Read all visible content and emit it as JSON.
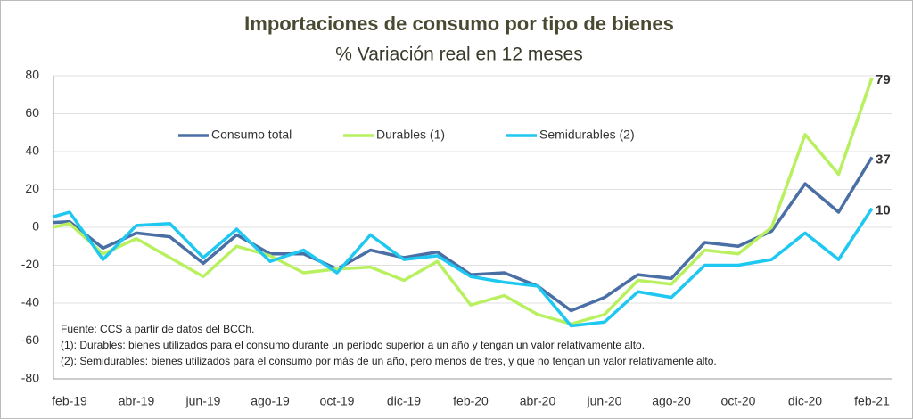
{
  "chart_data": {
    "type": "line",
    "title": "Importaciones de consumo por tipo de bienes",
    "subtitle": "% Variación real en 12 meses",
    "categories": [
      null,
      "feb-19",
      null,
      "abr-19",
      null,
      "jun-19",
      null,
      "ago-19",
      null,
      "oct-19",
      null,
      "dic-19",
      null,
      "feb-20",
      null,
      "abr-20",
      null,
      "jun-20",
      null,
      "ago-20",
      null,
      "oct-20",
      null,
      "dic-20",
      null,
      "feb-21"
    ],
    "series": [
      {
        "name": "Consumo total",
        "color": "#4a6fa5",
        "values": [
          2,
          3,
          -11,
          -3,
          -5,
          -19,
          -4,
          -14,
          -14,
          -22,
          -12,
          -16,
          -13,
          -25,
          -24,
          -31,
          -44,
          -37,
          -25,
          -27,
          -8,
          -10,
          -2,
          23,
          8,
          37
        ]
      },
      {
        "name": "Durables (1)",
        "color": "#b8f060",
        "values": [
          -2,
          2,
          -14,
          -6,
          -16,
          -26,
          -10,
          -15,
          -24,
          -22,
          -21,
          -28,
          -18,
          -41,
          -36,
          -46,
          -51,
          -46,
          -28,
          -30,
          -12,
          -14,
          0,
          49,
          28,
          79
        ]
      },
      {
        "name": "Semidurables (2)",
        "color": "#1ec8f0",
        "values": [
          3,
          8,
          -17,
          1,
          2,
          -16,
          -1,
          -18,
          -12,
          -24,
          -4,
          -17,
          -15,
          -26,
          -29,
          -31,
          -52,
          -50,
          -34,
          -37,
          -20,
          -20,
          -17,
          -3,
          -17,
          10
        ]
      }
    ],
    "ylim": [
      -80,
      80
    ],
    "yticks": [
      -80,
      -60,
      -40,
      -20,
      0,
      20,
      40,
      60,
      80
    ],
    "grid": true,
    "legend": "top",
    "annotations": [
      "Fuente: CCS a partir de datos del BCCh.",
      "(1): Durables: bienes utilizados para el consumo durante un período superior a un año y tengan un valor relativamente alto.",
      "(2): Semidurables: bienes utilizados para el consumo por más de un año, pero menos de tres, y que no tengan un valor relativamente alto."
    ]
  }
}
